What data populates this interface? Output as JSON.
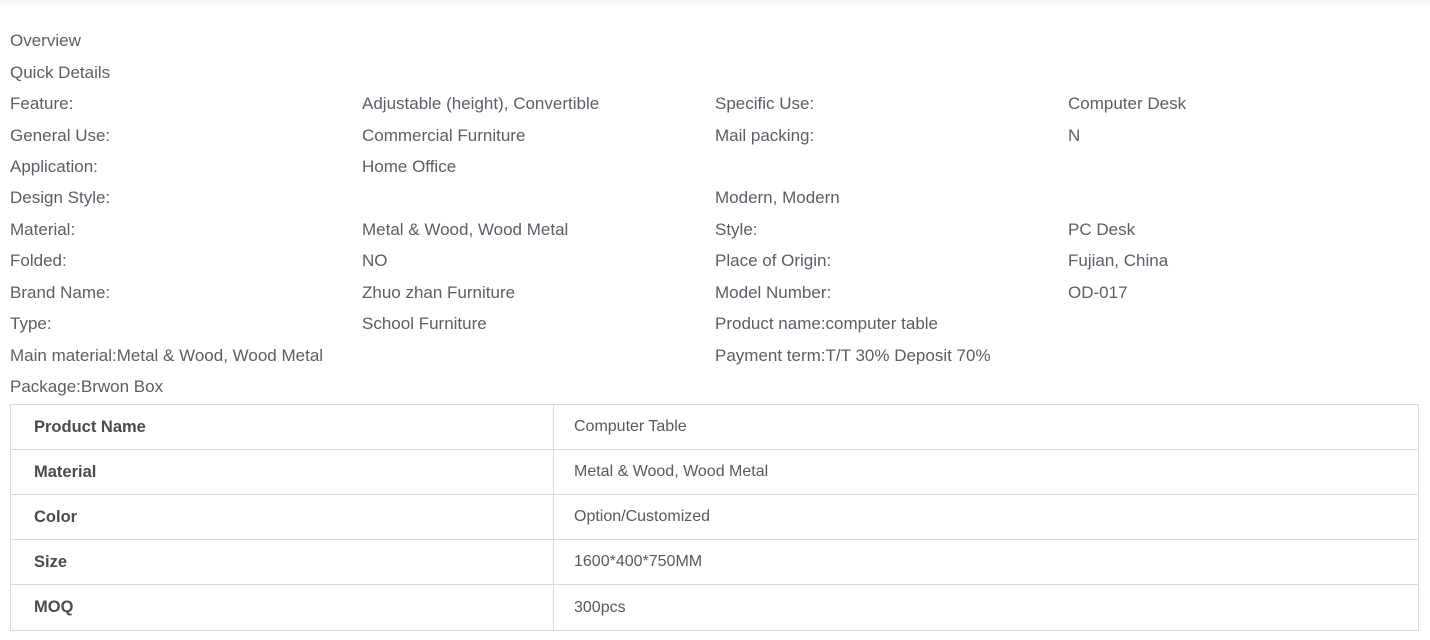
{
  "header": {
    "overview": "Overview",
    "quick_details": "Quick Details"
  },
  "quick_details": {
    "rows": [
      {
        "c1": "Feature:",
        "c2": "Adjustable (height), Convertible",
        "c3": "Specific Use:",
        "c4": "Computer Desk"
      },
      {
        "c1": "General Use:",
        "c2": "Commercial Furniture",
        "c3": "Mail packing:",
        "c4": "N"
      },
      {
        "c1": "Application:",
        "c2": "Home Office",
        "c3": "",
        "c4": ""
      },
      {
        "c1": "Design Style:",
        "c2": "",
        "c3": "Modern, Modern",
        "c4": ""
      },
      {
        "c1": "Material:",
        "c2": "Metal & Wood, Wood Metal",
        "c3": "Style:",
        "c4": "PC Desk"
      },
      {
        "c1": "Folded:",
        "c2": "NO",
        "c3": "Place of Origin:",
        "c4": "Fujian, China"
      },
      {
        "c1": "Brand Name:",
        "c2": "Zhuo zhan Furniture",
        "c3": "Model Number:",
        "c4": "OD-017"
      },
      {
        "c1": "Type:",
        "c2": "School Furniture",
        "c3": "Product name:computer table",
        "c4": ""
      },
      {
        "c1": "Main material:Metal & Wood, Wood Metal",
        "c2": "",
        "c3": "Payment term:T/T 30% Deposit 70%",
        "c4": ""
      },
      {
        "c1": "Package:Brwon Box",
        "c2": "",
        "c3": "",
        "c4": ""
      }
    ]
  },
  "spec_table": {
    "rows": [
      {
        "label": "Product Name",
        "value": "Computer Table"
      },
      {
        "label": "Material",
        "value": "Metal & Wood, Wood Metal"
      },
      {
        "label": "Color",
        "value": "Option/Customized"
      },
      {
        "label": "Size",
        "value": "1600*400*750MM"
      },
      {
        "label": "MOQ",
        "value": "300pcs"
      }
    ]
  },
  "colors": {
    "text_primary": "#595f66",
    "table_label_text": "#4a4b4d",
    "table_value_text": "#58595b",
    "table_border": "#d9d9d9"
  }
}
